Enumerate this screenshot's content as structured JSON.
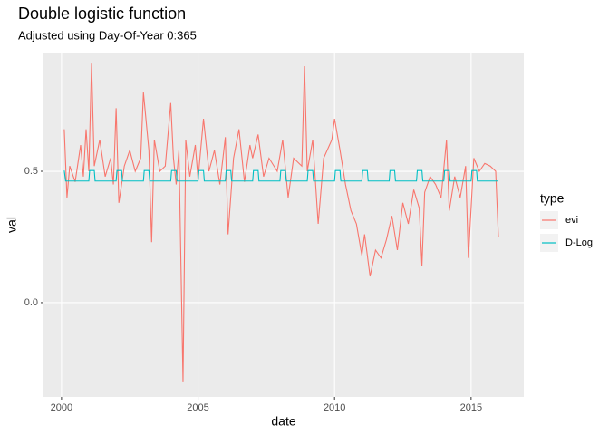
{
  "chart_data": {
    "type": "line",
    "title": "Double logistic function",
    "subtitle": "Adjusted using Day-Of-Year 0:365",
    "x_label": "date",
    "y_label": "val",
    "legend_title": "type",
    "xlim": [
      1999.34,
      2016.93
    ],
    "xticks": [
      2000,
      2005,
      2010,
      2015
    ],
    "ylim": [
      -0.359,
      0.952
    ],
    "yticks": [
      {
        "value": 0,
        "label": "0.0"
      },
      0.5
    ],
    "grid": true,
    "legend_position": "right",
    "series": [
      {
        "name": "evi",
        "color": "#f8766d",
        "x": [
          2000.1,
          2000.2,
          2000.3,
          2000.5,
          2000.7,
          2000.8,
          2000.9,
          2001.0,
          2001.1,
          2001.2,
          2001.4,
          2001.6,
          2001.8,
          2001.9,
          2002.0,
          2002.1,
          2002.3,
          2002.5,
          2002.7,
          2002.9,
          2003.0,
          2003.2,
          2003.3,
          2003.4,
          2003.6,
          2003.8,
          2004.0,
          2004.1,
          2004.2,
          2004.3,
          2004.45,
          2004.55,
          2004.7,
          2004.9,
          2005.0,
          2005.2,
          2005.4,
          2005.6,
          2005.8,
          2006.0,
          2006.1,
          2006.3,
          2006.5,
          2006.7,
          2006.9,
          2007.0,
          2007.2,
          2007.4,
          2007.6,
          2007.9,
          2008.1,
          2008.3,
          2008.5,
          2008.8,
          2008.9,
          2009.0,
          2009.2,
          2009.4,
          2009.6,
          2009.9,
          2010.0,
          2010.2,
          2010.4,
          2010.6,
          2010.8,
          2011.0,
          2011.1,
          2011.3,
          2011.5,
          2011.7,
          2011.9,
          2012.1,
          2012.3,
          2012.5,
          2012.7,
          2012.9,
          2013.1,
          2013.2,
          2013.3,
          2013.5,
          2013.7,
          2013.9,
          2014.1,
          2014.2,
          2014.4,
          2014.6,
          2014.8,
          2014.9,
          2015.1,
          2015.3,
          2015.5,
          2015.7,
          2015.9,
          2016.0
        ],
        "values": [
          0.66,
          0.4,
          0.52,
          0.46,
          0.6,
          0.48,
          0.66,
          0.5,
          0.91,
          0.52,
          0.62,
          0.48,
          0.55,
          0.45,
          0.74,
          0.38,
          0.52,
          0.58,
          0.5,
          0.55,
          0.8,
          0.58,
          0.23,
          0.62,
          0.5,
          0.52,
          0.76,
          0.55,
          0.45,
          0.58,
          -0.3,
          0.62,
          0.48,
          0.6,
          0.47,
          0.7,
          0.5,
          0.58,
          0.45,
          0.63,
          0.26,
          0.55,
          0.66,
          0.46,
          0.6,
          0.55,
          0.64,
          0.48,
          0.55,
          0.5,
          0.62,
          0.4,
          0.55,
          0.52,
          0.9,
          0.5,
          0.62,
          0.3,
          0.55,
          0.62,
          0.7,
          0.58,
          0.45,
          0.35,
          0.3,
          0.18,
          0.26,
          0.1,
          0.2,
          0.17,
          0.24,
          0.33,
          0.2,
          0.38,
          0.3,
          0.43,
          0.36,
          0.14,
          0.42,
          0.48,
          0.45,
          0.4,
          0.62,
          0.35,
          0.48,
          0.4,
          0.52,
          0.17,
          0.55,
          0.5,
          0.53,
          0.52,
          0.5,
          0.25
        ]
      },
      {
        "name": "D-Log",
        "color": "#00bfc4",
        "x": [
          2000.1,
          2000.15,
          2001.0,
          2001.03,
          2001.2,
          2001.23,
          2002.0,
          2002.03,
          2002.2,
          2002.23,
          2003.0,
          2003.03,
          2003.2,
          2003.23,
          2004.0,
          2004.03,
          2004.2,
          2004.23,
          2005.0,
          2005.03,
          2005.2,
          2005.23,
          2006.0,
          2006.03,
          2006.2,
          2006.23,
          2007.0,
          2007.03,
          2007.2,
          2007.23,
          2008.0,
          2008.03,
          2008.2,
          2008.23,
          2009.0,
          2009.03,
          2009.2,
          2009.23,
          2010.0,
          2010.03,
          2010.2,
          2010.23,
          2011.0,
          2011.03,
          2011.2,
          2011.23,
          2012.0,
          2012.03,
          2012.2,
          2012.23,
          2013.0,
          2013.03,
          2013.2,
          2013.23,
          2014.0,
          2014.03,
          2014.2,
          2014.23,
          2015.0,
          2015.03,
          2015.2,
          2015.23,
          2016.0
        ],
        "values": [
          0.503,
          0.463,
          0.463,
          0.503,
          0.503,
          0.463,
          0.463,
          0.503,
          0.503,
          0.463,
          0.463,
          0.503,
          0.503,
          0.463,
          0.463,
          0.503,
          0.503,
          0.463,
          0.463,
          0.503,
          0.503,
          0.463,
          0.463,
          0.503,
          0.503,
          0.463,
          0.463,
          0.503,
          0.503,
          0.463,
          0.463,
          0.503,
          0.503,
          0.463,
          0.463,
          0.503,
          0.503,
          0.463,
          0.463,
          0.503,
          0.503,
          0.463,
          0.463,
          0.503,
          0.503,
          0.463,
          0.463,
          0.503,
          0.503,
          0.463,
          0.463,
          0.503,
          0.503,
          0.463,
          0.463,
          0.503,
          0.503,
          0.463,
          0.463,
          0.503,
          0.503,
          0.463,
          0.463
        ]
      }
    ]
  }
}
